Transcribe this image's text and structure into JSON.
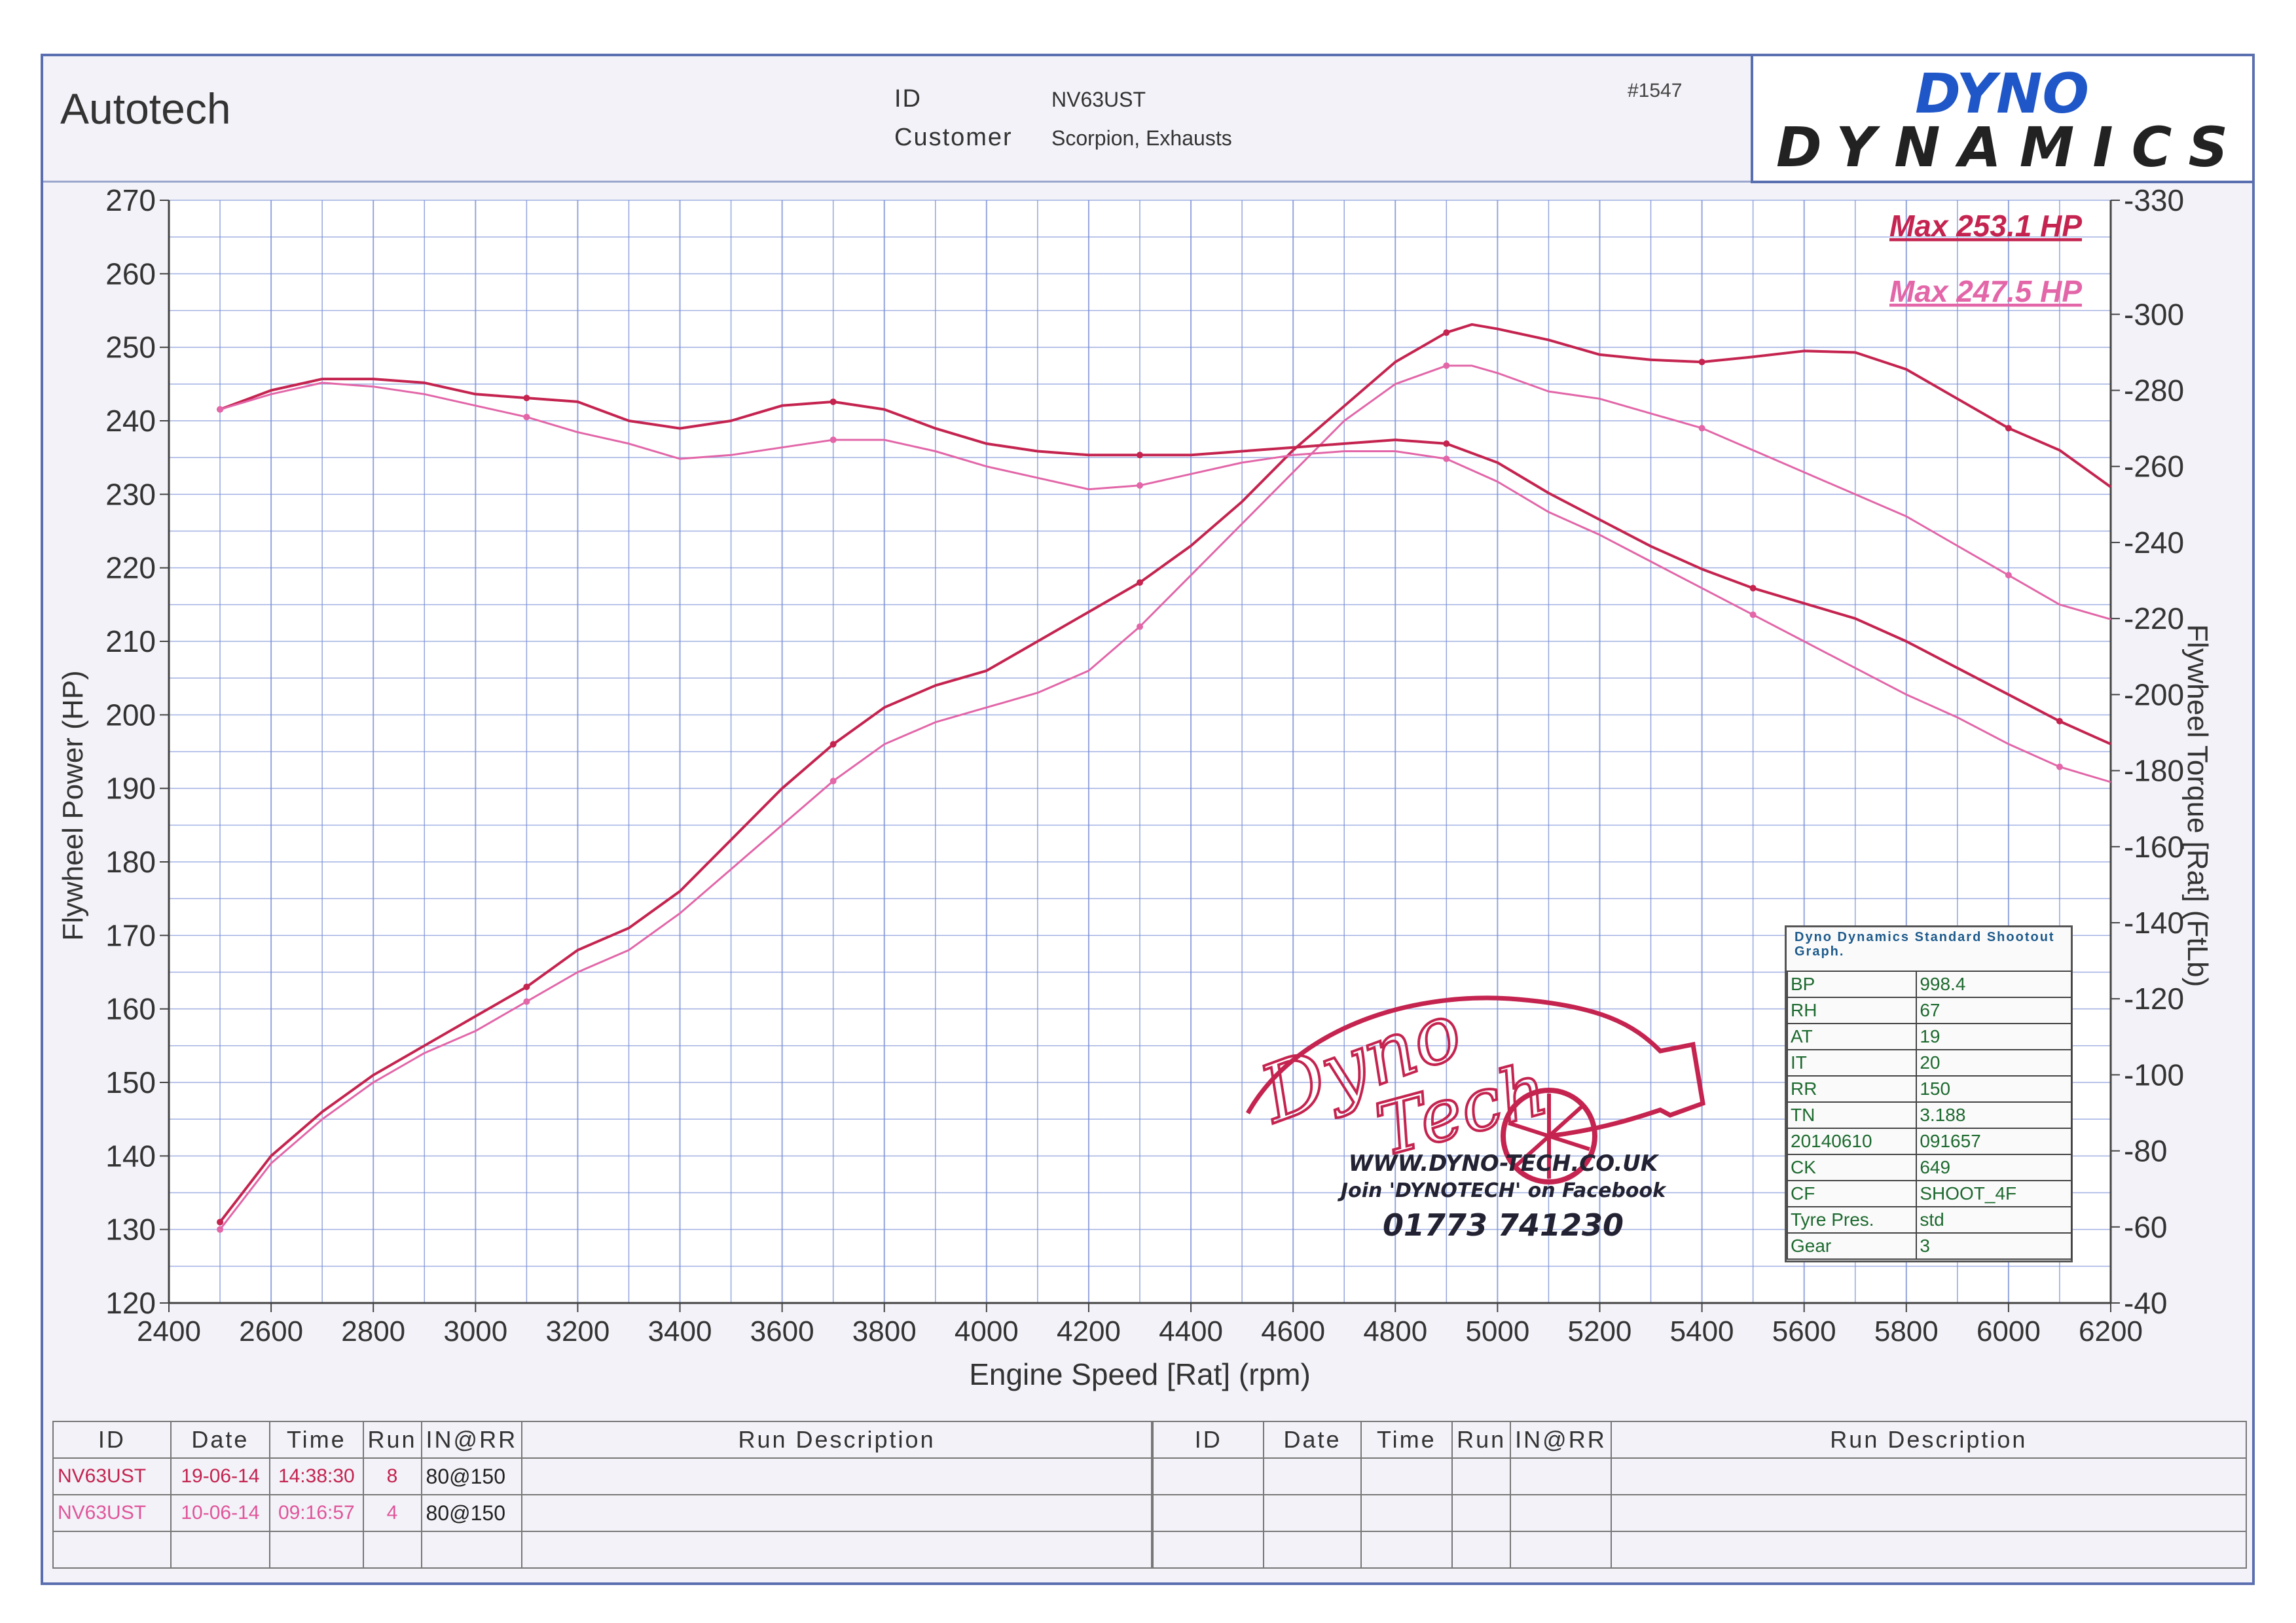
{
  "header": {
    "brand": "Autotech",
    "id_label": "ID",
    "id_value": "NV63UST",
    "customer_label": "Customer",
    "customer_value": "Scorpion, Exhausts",
    "job_number": "#1547",
    "logo_line1": "DYNO",
    "logo_line2": "DYNAMICS"
  },
  "colors": {
    "run1": "#c4244f",
    "run2": "#e266a8",
    "grid": "#7a8fd6"
  },
  "chart_data": {
    "type": "line",
    "xlabel": "Engine Speed [Rat] (rpm)",
    "ylabel_left": "Flywheel Power (HP)",
    "ylabel_right": "Flywheel Torque [Rat] (FtLb)",
    "xlim": [
      2400,
      6200
    ],
    "ylim_left": [
      120,
      270
    ],
    "ylim_right": [
      40,
      330
    ],
    "x_ticks": [
      2400,
      2600,
      2800,
      3000,
      3200,
      3400,
      3600,
      3800,
      4000,
      4200,
      4400,
      4600,
      4800,
      5000,
      5200,
      5400,
      5600,
      5800,
      6000,
      6200
    ],
    "y_ticks_left": [
      120,
      130,
      140,
      150,
      160,
      170,
      180,
      190,
      200,
      210,
      220,
      230,
      240,
      250,
      260,
      270
    ],
    "y_ticks_right": [
      40,
      60,
      80,
      100,
      120,
      140,
      160,
      180,
      200,
      220,
      240,
      260,
      280,
      300,
      330
    ],
    "grid": true,
    "annotations": [
      "Max 253.1 HP",
      "Max 247.5 HP"
    ],
    "series": [
      {
        "run": "run1",
        "quantity": "power",
        "axis": "left",
        "x": [
          2500,
          2600,
          2700,
          2800,
          2900,
          3000,
          3100,
          3200,
          3300,
          3400,
          3500,
          3600,
          3700,
          3800,
          3900,
          4000,
          4100,
          4200,
          4300,
          4400,
          4500,
          4600,
          4700,
          4800,
          4900,
          4950,
          5000,
          5100,
          5200,
          5300,
          5400,
          5500,
          5600,
          5700,
          5800,
          5900,
          6000,
          6100,
          6200
        ],
        "y": [
          131,
          140,
          146,
          151,
          155,
          159,
          163,
          168,
          171,
          176,
          183,
          190,
          196,
          201,
          204,
          206,
          210,
          214,
          218,
          223,
          229,
          236,
          242,
          248,
          252,
          253.1,
          252.5,
          251,
          249,
          248.3,
          248,
          248.7,
          249.5,
          249.3,
          247,
          243,
          239,
          236,
          231
        ]
      },
      {
        "run": "run2",
        "quantity": "power",
        "axis": "left",
        "x": [
          2500,
          2600,
          2700,
          2800,
          2900,
          3000,
          3100,
          3200,
          3300,
          3400,
          3500,
          3600,
          3700,
          3800,
          3900,
          4000,
          4100,
          4200,
          4300,
          4400,
          4500,
          4600,
          4700,
          4800,
          4900,
          4950,
          5000,
          5100,
          5200,
          5300,
          5400,
          5500,
          5600,
          5700,
          5800,
          5900,
          6000,
          6100,
          6200
        ],
        "y": [
          130,
          139,
          145,
          150,
          154,
          157,
          161,
          165,
          168,
          173,
          179,
          185,
          191,
          196,
          199,
          201,
          203,
          206,
          212,
          219,
          226,
          233,
          240,
          245,
          247.5,
          247.5,
          246.5,
          244,
          243,
          241,
          239,
          236,
          233,
          230,
          227,
          223,
          219,
          215,
          213
        ]
      },
      {
        "run": "run1",
        "quantity": "torque",
        "axis": "right",
        "x": [
          2500,
          2600,
          2700,
          2800,
          2900,
          3000,
          3100,
          3200,
          3300,
          3400,
          3500,
          3600,
          3700,
          3800,
          3900,
          4000,
          4100,
          4200,
          4300,
          4400,
          4500,
          4600,
          4700,
          4800,
          4900,
          5000,
          5100,
          5200,
          5300,
          5400,
          5500,
          5600,
          5700,
          5800,
          5900,
          6000,
          6100,
          6200
        ],
        "y": [
          275,
          280,
          283,
          283,
          282,
          279,
          278,
          277,
          272,
          270,
          272,
          276,
          277,
          275,
          270,
          266,
          264,
          263,
          263,
          263,
          264,
          265,
          266,
          267,
          266,
          261,
          253,
          246,
          239,
          233,
          228,
          224,
          220,
          214,
          207,
          200,
          193,
          187
        ]
      },
      {
        "run": "run2",
        "quantity": "torque",
        "axis": "right",
        "x": [
          2500,
          2600,
          2700,
          2800,
          2900,
          3000,
          3100,
          3200,
          3300,
          3400,
          3500,
          3600,
          3700,
          3800,
          3900,
          4000,
          4100,
          4200,
          4300,
          4400,
          4500,
          4600,
          4700,
          4800,
          4900,
          5000,
          5100,
          5200,
          5300,
          5400,
          5500,
          5600,
          5700,
          5800,
          5900,
          6000,
          6100,
          6200
        ],
        "y": [
          275,
          279,
          282,
          281,
          279,
          276,
          273,
          269,
          266,
          262,
          263,
          265,
          267,
          267,
          264,
          260,
          257,
          254,
          255,
          258,
          261,
          263,
          264,
          264,
          262,
          256,
          248,
          242,
          235,
          228,
          221,
          214,
          207,
          200,
          194,
          187,
          181,
          177
        ]
      }
    ]
  },
  "overlay": {
    "dynotech_site": "WWW.DYNO-TECH.CO.UK",
    "dynotech_fb": "Join 'DYNOTECH' on Facebook",
    "dynotech_phone": "01773 741230",
    "dynotech_word1": "Dyno",
    "dynotech_word2": "Tech"
  },
  "shootout": {
    "title": "Dyno Dynamics Standard Shootout Graph.",
    "rows": [
      [
        "BP",
        "998.4"
      ],
      [
        "RH",
        "67"
      ],
      [
        "AT",
        "19"
      ],
      [
        "IT",
        "20"
      ],
      [
        "RR",
        "150"
      ],
      [
        "TN",
        "3.188"
      ],
      [
        "20140610",
        "091657"
      ],
      [
        "CK",
        "649"
      ],
      [
        "CF",
        "SHOOT_4F"
      ],
      [
        "Tyre Pres.",
        "std"
      ],
      [
        "Gear",
        "3"
      ]
    ]
  },
  "runs_table": {
    "headers_left": [
      "ID",
      "Date",
      "Time",
      "Run",
      "IN@RR",
      "Run Description"
    ],
    "headers_right": [
      "ID",
      "Date",
      "Time",
      "Run",
      "IN@RR",
      "Run Description"
    ],
    "rows": [
      [
        "NV63UST",
        "19-06-14",
        "14:38:30",
        "8",
        "80@150",
        ""
      ],
      [
        "NV63UST",
        "10-06-14",
        "09:16:57",
        "4",
        "80@150",
        ""
      ]
    ]
  }
}
